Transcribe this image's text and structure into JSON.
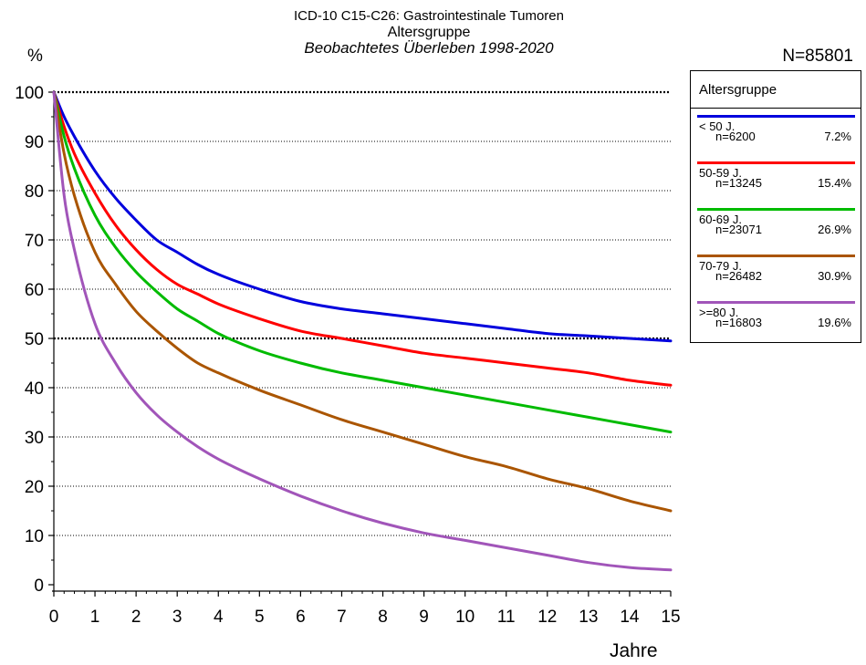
{
  "header": {
    "title_line1": "ICD-10 C15-C26: Gastrointestinale Tumoren",
    "title_line2": "Altersgruppe",
    "subtitle": "Beobachtetes Überleben 1998-2020",
    "y_unit": "%",
    "total_n": "N=85801"
  },
  "legend": {
    "title": "Altersgruppe",
    "placement": "right"
  },
  "chart_data": {
    "type": "line",
    "title": "ICD-10 C15-C26: Gastrointestinale Tumoren",
    "subtitle": "Altersgruppe — Beobachtetes Überleben 1998-2020",
    "xlabel": "Jahre",
    "ylabel": "%",
    "xlim": [
      0,
      15
    ],
    "ylim": [
      0,
      100
    ],
    "xticks": [
      0,
      1,
      2,
      3,
      4,
      5,
      6,
      7,
      8,
      9,
      10,
      11,
      12,
      13,
      14,
      15
    ],
    "yticks": [
      0,
      10,
      20,
      30,
      40,
      50,
      60,
      70,
      80,
      90,
      100
    ],
    "grid": "horizontal dotted at 10-unit intervals; bold dotted reference lines at 50 and 100",
    "legend_placement": "right",
    "x": [
      0,
      0.25,
      0.5,
      1,
      1.5,
      2,
      2.5,
      3,
      3.5,
      4,
      5,
      6,
      7,
      8,
      9,
      10,
      11,
      12,
      13,
      14,
      15
    ],
    "series": [
      {
        "name": "< 50 J.",
        "n": "n=6200",
        "pct": "7.2%",
        "color": "#0000dd",
        "values": [
          100,
          95,
          91,
          84,
          78.5,
          74,
          70,
          67.5,
          65,
          63,
          60,
          57.5,
          56,
          55,
          54,
          53,
          52,
          51,
          50.5,
          50,
          49.5
        ]
      },
      {
        "name": "50-59 J.",
        "n": "n=13245",
        "pct": "15.4%",
        "color": "#ff0000",
        "values": [
          100,
          93,
          87.5,
          79.5,
          73,
          68,
          64,
          61,
          59,
          57,
          54,
          51.5,
          50,
          48.5,
          47,
          46,
          45,
          44,
          43,
          41.5,
          40.5
        ]
      },
      {
        "name": "60-69 J.",
        "n": "n=23071",
        "pct": "26.9%",
        "color": "#00bb00",
        "values": [
          100,
          91,
          84.5,
          75,
          68.5,
          63.5,
          59.5,
          56,
          53.5,
          51,
          47.5,
          45,
          43,
          41.5,
          40,
          38.5,
          37,
          35.5,
          34,
          32.5,
          31
        ]
      },
      {
        "name": "70-79 J.",
        "n": "n=26482",
        "pct": "30.9%",
        "color": "#aa5500",
        "values": [
          100,
          87.5,
          79,
          67.5,
          61,
          55.5,
          51.5,
          48,
          45,
          43,
          39.5,
          36.5,
          33.5,
          31,
          28.5,
          26,
          24,
          21.5,
          19.5,
          17,
          15
        ]
      },
      {
        "name": ">=80 J.",
        "n": "n=16803",
        "pct": "19.6%",
        "color": "#a155b9",
        "values": [
          100,
          79,
          68,
          53,
          45,
          39,
          34.5,
          31,
          28,
          25.5,
          21.5,
          18,
          15,
          12.5,
          10.5,
          9,
          7.5,
          6,
          4.5,
          3.5,
          3
        ]
      }
    ]
  }
}
